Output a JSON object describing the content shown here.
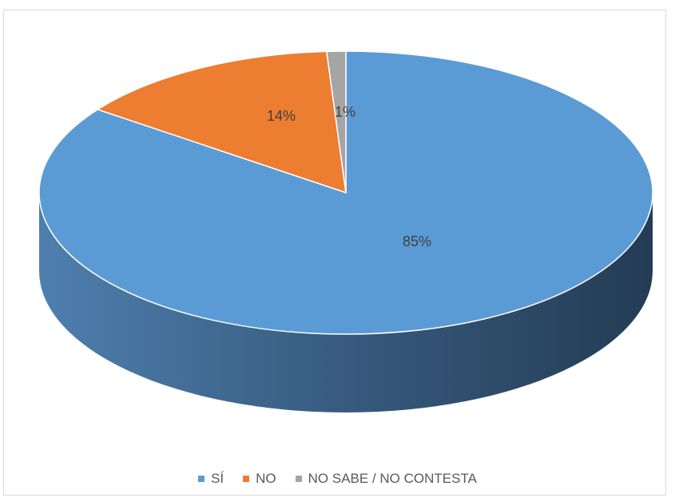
{
  "chart_data": {
    "type": "pie",
    "categories": [
      "SÍ",
      "NO",
      "NO SABE / NO CONTESTA"
    ],
    "values": [
      85,
      14,
      1
    ],
    "labels": [
      "85%",
      "14%",
      "1%"
    ],
    "colors": [
      "#5b9bd5",
      "#ed7d31",
      "#a5a5a5"
    ],
    "side_colors": [
      "#41719c",
      "#ae5a21",
      "#7b7b7b"
    ],
    "title": "",
    "legend_position": "bottom",
    "style": "3d"
  }
}
